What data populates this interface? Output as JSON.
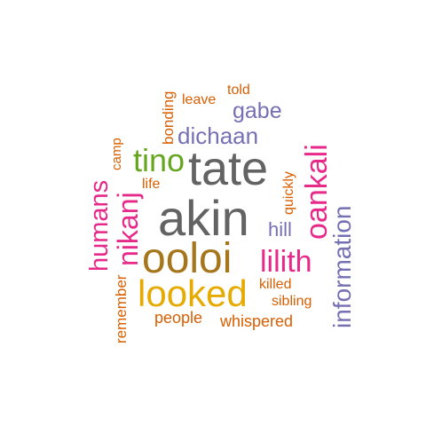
{
  "colors": {
    "dark_gray": "#636363",
    "orange": "#d95f02",
    "purple": "#7570b3",
    "magenta": "#e7298a",
    "green": "#66a61e",
    "gold": "#e6ab02",
    "brown": "#a6761d"
  },
  "words": {
    "akin": "akin",
    "tate": "tate",
    "ooloi": "ooloi",
    "looked": "looked",
    "lilith": "lilith",
    "oankali": "oankali",
    "nikanj": "nikanj",
    "humans": "humans",
    "information": "information",
    "tino": "tino",
    "dichaan": "dichaan",
    "gabe": "gabe",
    "hill": "hill",
    "told": "told",
    "leave": "leave",
    "bonding": "bonding",
    "camp": "camp",
    "life": "life",
    "quickly": "quickly",
    "killed": "killed",
    "sibling": "sibling",
    "people": "people",
    "whispered": "whispered",
    "remember": "remember"
  }
}
